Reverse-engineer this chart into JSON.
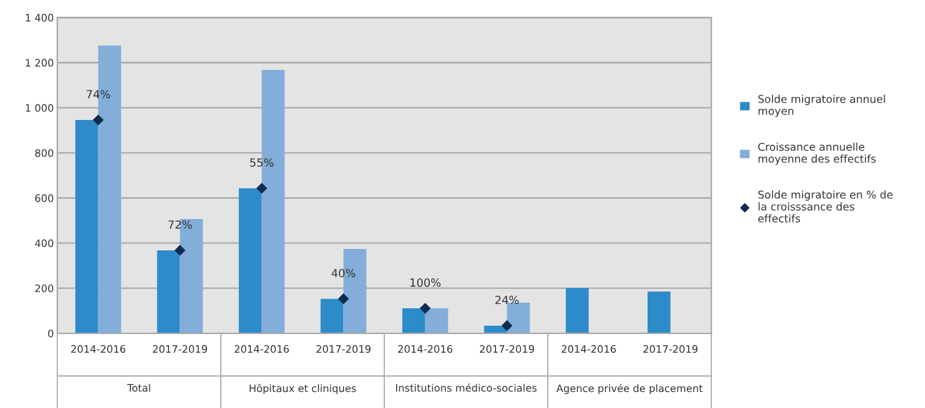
{
  "chart_data": {
    "type": "bar",
    "categories": [
      "2014-2016",
      "2017-2019",
      "2014-2016",
      "2017-2019",
      "2014-2016",
      "2017-2019",
      "2014-2016",
      "2017-2019"
    ],
    "series": [
      {
        "name": "Solde migratoire annuel moyen",
        "color": "#2e8bc9",
        "values": [
          946,
          368,
          643,
          153,
          111,
          34,
          201,
          185
        ]
      },
      {
        "name": "Croissance annuelle moyenne des effectifs",
        "color": "#82aed9",
        "values": [
          1276,
          507,
          1168,
          374,
          111,
          136,
          null,
          null
        ]
      },
      {
        "name": "Solde migratoire en % de la croisssance des effectifs",
        "type": "scatter",
        "color": "#0d2d50",
        "marker": "diamond",
        "values": [
          946,
          368,
          643,
          153,
          111,
          34,
          null,
          null
        ]
      }
    ],
    "annotations": [
      "Total",
      "Hôpitaux et cliniques",
      "Institutions médico-sociales",
      "Agence privée de placement",
      {
        "text": "74%",
        "y": 946
      },
      {
        "text": "72%",
        "y": 368
      },
      {
        "text": "55%",
        "y": 643
      },
      {
        "text": "40%",
        "y": 153
      },
      {
        "text": "100%",
        "y": 111
      },
      {
        "text": "24%",
        "y": 34
      }
    ],
    "ylim": [
      0,
      1400
    ],
    "yticks": [
      0,
      200,
      400,
      600,
      800,
      {
        "value": 1000,
        "label": "1 000"
      },
      {
        "value": 1200,
        "label": "1 200"
      },
      {
        "value": 1400,
        "label": "1 400"
      }
    ],
    "grid": "y",
    "legend": "right"
  }
}
